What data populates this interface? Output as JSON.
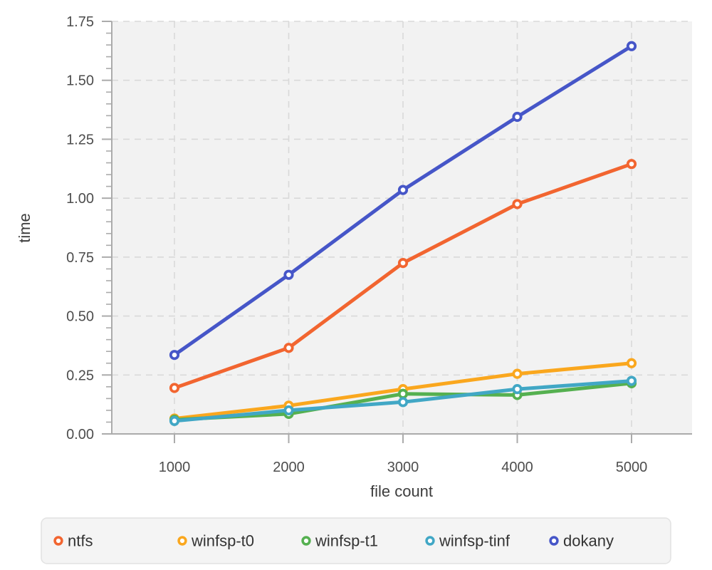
{
  "chart_data": {
    "type": "line",
    "title": "",
    "xlabel": "file count",
    "ylabel": "time",
    "x": [
      1000,
      2000,
      3000,
      4000,
      5000
    ],
    "series": [
      {
        "name": "ntfs",
        "color": "#f26530",
        "values": [
          0.195,
          0.365,
          0.725,
          0.975,
          1.145
        ]
      },
      {
        "name": "winfsp-t0",
        "color": "#faa71e",
        "values": [
          0.065,
          0.12,
          0.19,
          0.255,
          0.3
        ]
      },
      {
        "name": "winfsp-t1",
        "color": "#55b050",
        "values": [
          0.06,
          0.085,
          0.17,
          0.165,
          0.215
        ]
      },
      {
        "name": "winfsp-tinf",
        "color": "#41a7c5",
        "values": [
          0.055,
          0.1,
          0.135,
          0.19,
          0.225
        ]
      },
      {
        "name": "dokany",
        "color": "#4656c8",
        "values": [
          0.335,
          0.675,
          1.035,
          1.345,
          1.645
        ]
      }
    ],
    "x_ticks": [
      1000,
      2000,
      3000,
      4000,
      5000
    ],
    "x_tick_labels": [
      "1000",
      "2000",
      "3000",
      "4000",
      "5000"
    ],
    "y_ticks": [
      0.0,
      0.25,
      0.5,
      0.75,
      1.0,
      1.25,
      1.5,
      1.75
    ],
    "y_tick_labels": [
      "0.00",
      "0.25",
      "0.50",
      "0.75",
      "1.00",
      "1.25",
      "1.50",
      "1.75"
    ],
    "ylim": [
      0,
      1.75
    ],
    "grid": "dashed",
    "legend_position": "bottom",
    "marker": "open-circle"
  },
  "style": {
    "page_bg": "#ffffff",
    "plot_bg": "#f2f2f2",
    "grid_color": "#d9d9d9",
    "axis_color": "#ababab",
    "tick_text_color": "#4d4d4d",
    "axis_title_color": "#3d3d3d",
    "legend_bg": "#f4f4f4",
    "legend_border": "#e2e2e2",
    "legend_text_color": "#333333",
    "marker_fill": "#ffffff"
  }
}
